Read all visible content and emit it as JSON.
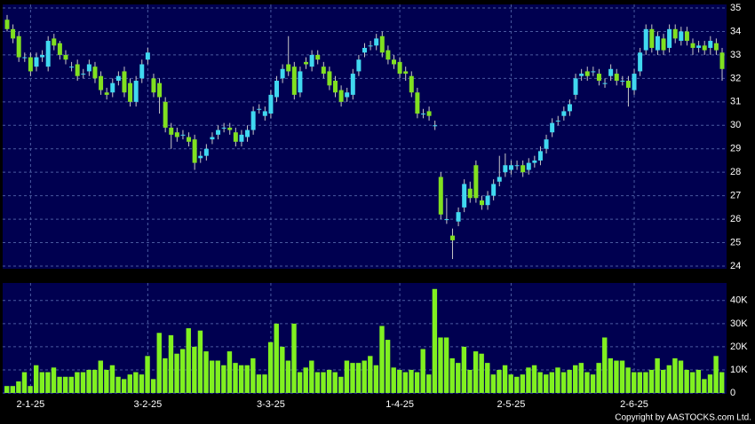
{
  "chart_data": [
    {
      "type": "candlestick",
      "up_color": "#40d8f0",
      "down_color": "#80e020",
      "wick_color": "#c8c8c8",
      "grid": true,
      "ylim": [
        24,
        35
      ],
      "yticks": [
        24,
        25,
        26,
        27,
        28,
        29,
        30,
        31,
        32,
        33,
        34,
        35
      ],
      "open": [
        34.5,
        34.1,
        33.8,
        32.9,
        32.9,
        32.5,
        32.9,
        32.5,
        33.7,
        33.5,
        33.0,
        32.5,
        32.6,
        32.2,
        32.3,
        32.5,
        32.1,
        31.4,
        31.4,
        31.9,
        32.3,
        31.8,
        31.0,
        32.0,
        32.8,
        32.0,
        31.8,
        31.0,
        29.9,
        29.7,
        29.6,
        29.5,
        29.4,
        28.6,
        28.7,
        29.4,
        29.6,
        29.9,
        29.9,
        29.7,
        29.3,
        29.5,
        29.8,
        30.7,
        30.4,
        30.5,
        31.2,
        32.0,
        32.6,
        32.5,
        31.4,
        32.7,
        32.5,
        33.0,
        32.5,
        32.3,
        31.9,
        31.5,
        31.2,
        31.3,
        32.3,
        33.1,
        33.4,
        33.4,
        33.8,
        33.2,
        32.8,
        32.7,
        32.3,
        32.1,
        31.4,
        30.5,
        30.6,
        30.0,
        27.8,
        26.0,
        25.3,
        25.9,
        26.5,
        27.3,
        28.3,
        26.8,
        26.6,
        27.0,
        27.6,
        28.0,
        28.1,
        28.3,
        28.3,
        28.1,
        28.4,
        28.5,
        29.0,
        29.7,
        30.2,
        30.4,
        30.6,
        31.3,
        32.1,
        32.3,
        32.3,
        32.2,
        31.8,
        32.1,
        32.2,
        31.9,
        31.9,
        31.5,
        32.3,
        33.2,
        34.1,
        33.2,
        33.7,
        33.3,
        34.1,
        33.6,
        34.0,
        33.5,
        33.3,
        33.4,
        33.3,
        33.5,
        33.1
      ],
      "high": [
        34.7,
        34.3,
        34.0,
        33.1,
        33.1,
        33.1,
        33.2,
        33.8,
        33.9,
        33.6,
        33.2,
        32.7,
        32.8,
        32.4,
        32.8,
        32.7,
        32.3,
        31.6,
        32.0,
        32.3,
        32.5,
        32.0,
        32.1,
        32.8,
        33.3,
        32.2,
        32.0,
        31.2,
        30.1,
        29.9,
        29.8,
        29.7,
        29.6,
        28.9,
        29.2,
        29.7,
        30.0,
        30.1,
        30.1,
        29.9,
        29.8,
        30.0,
        30.8,
        30.9,
        30.8,
        31.5,
        32.1,
        32.6,
        33.8,
        32.7,
        32.5,
        32.9,
        33.2,
        33.2,
        32.7,
        32.5,
        32.1,
        31.7,
        31.6,
        32.4,
        33.0,
        33.5,
        33.6,
        33.9,
        34.0,
        33.4,
        33.0,
        32.9,
        32.5,
        32.3,
        31.6,
        30.7,
        30.8,
        30.2,
        28.0,
        26.9,
        25.6,
        26.5,
        27.7,
        27.6,
        28.5,
        27.0,
        27.2,
        27.7,
        28.7,
        28.8,
        28.5,
        28.5,
        28.5,
        28.6,
        28.7,
        29.1,
        29.6,
        30.3,
        30.4,
        30.8,
        31.1,
        32.2,
        32.4,
        32.5,
        32.5,
        32.4,
        32.0,
        32.6,
        32.4,
        32.1,
        32.1,
        32.4,
        33.3,
        34.3,
        34.3,
        34.0,
        33.9,
        34.3,
        34.3,
        34.2,
        34.2,
        33.7,
        33.6,
        33.6,
        33.8,
        33.7,
        33.3
      ],
      "low": [
        34.0,
        33.5,
        32.7,
        32.7,
        32.1,
        32.3,
        32.7,
        32.3,
        33.2,
        32.8,
        32.6,
        32.3,
        31.9,
        32.0,
        32.1,
        31.8,
        31.3,
        31.1,
        31.2,
        31.7,
        31.2,
        30.8,
        30.8,
        31.8,
        32.6,
        31.2,
        30.5,
        29.7,
        29.0,
        29.3,
        29.4,
        29.1,
        28.1,
        28.4,
        28.5,
        29.2,
        29.4,
        29.7,
        29.6,
        29.1,
        29.1,
        29.3,
        29.6,
        30.5,
        30.2,
        30.3,
        31.0,
        31.8,
        32.1,
        31.1,
        31.2,
        32.4,
        32.3,
        32.6,
        32.0,
        31.5,
        31.2,
        30.8,
        31.0,
        31.1,
        32.1,
        32.9,
        33.2,
        33.2,
        32.9,
        32.6,
        32.4,
        32.0,
        31.9,
        31.2,
        30.3,
        30.3,
        30.2,
        29.8,
        26.0,
        25.8,
        24.3,
        25.7,
        26.3,
        26.7,
        26.7,
        26.4,
        26.4,
        26.8,
        27.4,
        27.8,
        27.9,
        28.1,
        27.8,
        27.9,
        28.2,
        28.3,
        28.8,
        29.5,
        30.0,
        30.2,
        30.4,
        31.1,
        31.9,
        31.9,
        32.1,
        31.7,
        31.6,
        31.9,
        31.7,
        31.7,
        30.8,
        31.3,
        32.1,
        33.0,
        33.1,
        33.0,
        33.0,
        33.1,
        33.5,
        33.4,
        33.4,
        33.0,
        33.1,
        33.0,
        33.0,
        33.0,
        31.9
      ],
      "close": [
        34.1,
        33.7,
        32.9,
        32.9,
        32.3,
        32.9,
        33.0,
        33.6,
        33.4,
        33.0,
        32.8,
        32.5,
        32.1,
        32.2,
        32.6,
        32.0,
        31.5,
        31.3,
        31.8,
        32.1,
        31.4,
        31.0,
        31.9,
        32.6,
        33.1,
        31.4,
        31.2,
        29.9,
        29.6,
        29.5,
        29.6,
        29.3,
        28.4,
        28.7,
        29.0,
        29.5,
        29.8,
        29.9,
        29.8,
        29.3,
        29.6,
        29.8,
        30.6,
        30.7,
        30.6,
        31.3,
        31.9,
        32.4,
        32.3,
        31.3,
        32.3,
        32.6,
        33.0,
        32.8,
        32.2,
        31.7,
        31.4,
        31.0,
        31.4,
        32.2,
        32.8,
        33.3,
        33.4,
        33.7,
        33.1,
        32.8,
        32.6,
        32.2,
        32.2,
        31.4,
        30.5,
        30.5,
        30.4,
        30.0,
        26.2,
        26.0,
        25.1,
        26.3,
        27.5,
        26.9,
        26.9,
        26.6,
        27.0,
        27.5,
        27.8,
        28.3,
        28.3,
        28.3,
        28.0,
        28.4,
        28.5,
        28.9,
        29.4,
        30.1,
        30.2,
        30.6,
        30.9,
        32.0,
        32.2,
        32.1,
        32.3,
        31.9,
        31.8,
        32.4,
        31.9,
        31.9,
        31.6,
        32.2,
        33.1,
        34.1,
        33.3,
        33.8,
        33.2,
        34.1,
        33.7,
        34.0,
        33.6,
        33.3,
        33.4,
        33.2,
        33.6,
        33.2,
        32.4
      ],
      "categories": [
        null,
        null,
        null,
        null,
        "2-1-25",
        null,
        null,
        null,
        null,
        null,
        null,
        null,
        null,
        null,
        null,
        null,
        null,
        null,
        null,
        null,
        null,
        null,
        null,
        null,
        "3-2-25",
        null,
        null,
        null,
        null,
        null,
        null,
        null,
        null,
        null,
        null,
        null,
        null,
        null,
        null,
        null,
        null,
        null,
        null,
        null,
        null,
        "3-3-25",
        null,
        null,
        null,
        null,
        null,
        null,
        null,
        null,
        null,
        null,
        null,
        null,
        null,
        null,
        null,
        null,
        null,
        null,
        null,
        null,
        null,
        "1-4-25",
        null,
        null,
        null,
        null,
        null,
        null,
        null,
        null,
        null,
        null,
        null,
        null,
        null,
        null,
        null,
        null,
        null,
        null,
        "2-5-25",
        null,
        null,
        null,
        null,
        null,
        null,
        null,
        null,
        null,
        null,
        null,
        null,
        null,
        null,
        null,
        null,
        null,
        null,
        null,
        null,
        "2-6-25",
        null,
        null,
        null,
        null,
        null,
        null,
        null,
        null,
        null,
        null,
        null,
        null,
        null,
        null,
        null
      ]
    },
    {
      "type": "bar",
      "color": "#80f020",
      "grid": true,
      "ylim": [
        0,
        47600
      ],
      "yticks": [
        0,
        {
          "value": 10000,
          "label": "10K"
        },
        {
          "value": 20000,
          "label": "20K"
        },
        {
          "value": 30000,
          "label": "30K"
        },
        {
          "value": 40000,
          "label": "40K"
        }
      ],
      "values": [
        3000,
        3000,
        5000,
        9000,
        3000,
        12000,
        9000,
        9000,
        11000,
        7000,
        7000,
        7000,
        9000,
        9000,
        10000,
        10000,
        14000,
        10000,
        12000,
        7000,
        6000,
        8000,
        9000,
        8000,
        16000,
        6000,
        26000,
        15000,
        25000,
        17000,
        19000,
        28000,
        20000,
        27000,
        18000,
        14000,
        14000,
        12000,
        18000,
        13000,
        12000,
        12000,
        15000,
        8000,
        8000,
        22000,
        30000,
        20000,
        14000,
        30000,
        9000,
        11000,
        14000,
        9000,
        9000,
        10000,
        9000,
        7000,
        14000,
        13000,
        13000,
        14000,
        16000,
        12000,
        29000,
        23000,
        11000,
        10000,
        9000,
        10000,
        9000,
        19000,
        8000,
        45000,
        24000,
        24000,
        15000,
        13000,
        20000,
        10000,
        18000,
        17000,
        13000,
        8000,
        10000,
        12000,
        8000,
        7000,
        8000,
        11000,
        12000,
        9000,
        8000,
        9000,
        11000,
        9000,
        10000,
        12000,
        13000,
        9000,
        8000,
        13000,
        24000,
        15000,
        14000,
        14000,
        11000,
        9000,
        9000,
        9000,
        10000,
        15000,
        10000,
        12000,
        15000,
        14000,
        10000,
        9000,
        10000,
        6000,
        8000,
        16000,
        9000
      ]
    }
  ],
  "footer": "Copyright by AASTOCKS.com Ltd."
}
